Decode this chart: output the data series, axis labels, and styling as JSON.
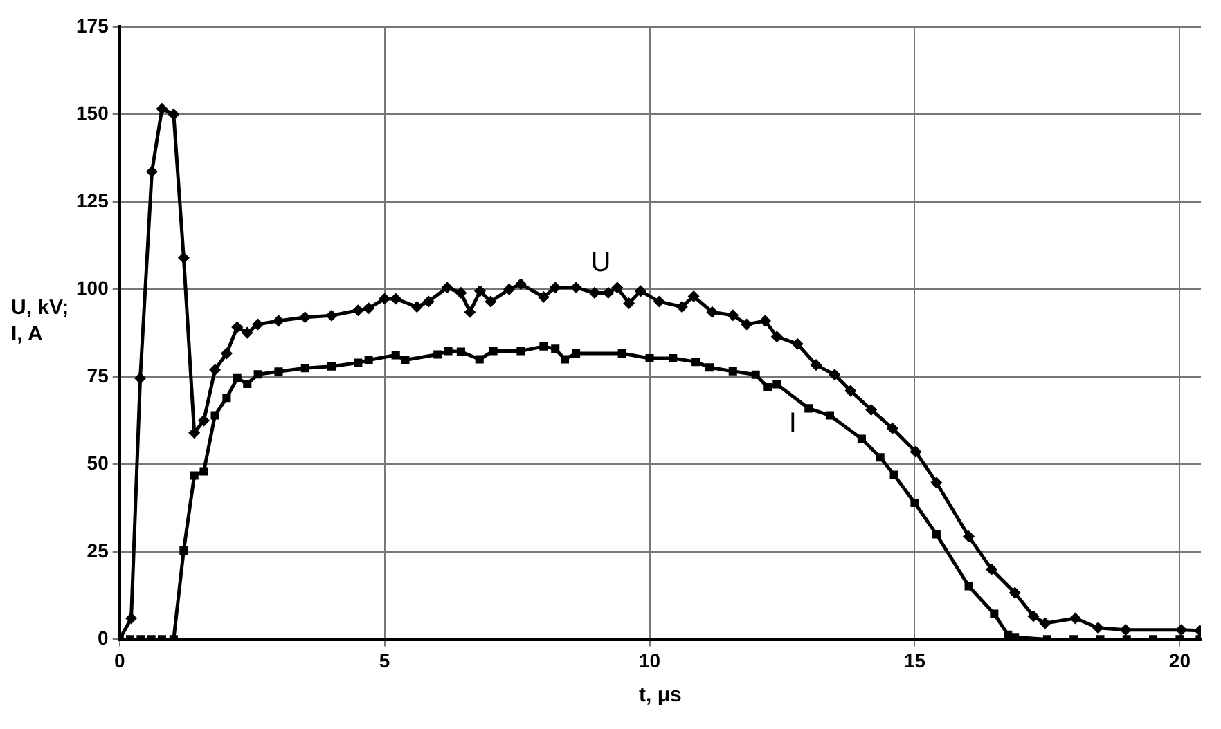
{
  "chart_data": {
    "type": "line",
    "xlabel": "t, μs",
    "ylabel": "U, kV; I, A",
    "xlim": [
      0,
      20.4
    ],
    "xticks": [
      0,
      5,
      10,
      15,
      20
    ],
    "ylim": [
      0,
      175
    ],
    "yticks": [
      0,
      25,
      50,
      75,
      100,
      125,
      150,
      175
    ],
    "grid": true,
    "legend": false,
    "line_style": "solid",
    "series": [
      {
        "name": "U",
        "color": "#000000",
        "marker": "diamond",
        "x": [
          0,
          0.22,
          0.39,
          0.61,
          0.8,
          1.02,
          1.21,
          1.41,
          1.59,
          1.8,
          2.02,
          2.22,
          2.41,
          2.61,
          3.0,
          3.5,
          4.0,
          4.5,
          4.7,
          5.0,
          5.21,
          5.61,
          5.83,
          6.18,
          6.44,
          6.61,
          6.8,
          7.0,
          7.35,
          7.57,
          8.0,
          8.22,
          8.61,
          8.96,
          9.22,
          9.39,
          9.61,
          9.83,
          10.18,
          10.61,
          10.83,
          11.18,
          11.57,
          11.83,
          12.18,
          12.4,
          12.79,
          13.14,
          13.49,
          13.79,
          14.18,
          14.58,
          15.02,
          15.41,
          16.02,
          16.45,
          16.89,
          17.24,
          17.46,
          18.03,
          18.46,
          18.98,
          20.03,
          20.38
        ],
        "values": [
          0,
          6,
          74.6,
          133.6,
          151.6,
          150,
          109,
          59,
          62.5,
          77,
          81.7,
          89.2,
          87.6,
          90,
          91,
          92,
          92.5,
          94,
          94.6,
          97.3,
          97.3,
          95,
          96.5,
          100.5,
          99,
          93.5,
          99.5,
          96.5,
          100,
          101.5,
          97.8,
          100.5,
          100.5,
          99,
          99,
          100.5,
          96,
          99.5,
          96.5,
          95,
          98,
          93.5,
          92.6,
          90,
          91,
          86.5,
          84.4,
          78.4,
          75.6,
          71,
          65.6,
          60.3,
          53.6,
          44.8,
          29.4,
          20,
          13.3,
          6.6,
          4.6,
          6,
          3.3,
          2.7,
          2.7,
          2.5
        ]
      },
      {
        "name": "I",
        "color": "#000000",
        "marker": "square",
        "x": [
          0,
          0.2,
          0.4,
          0.6,
          0.8,
          1.02,
          1.21,
          1.41,
          1.59,
          1.8,
          2.02,
          2.22,
          2.41,
          2.61,
          3.0,
          3.5,
          4.0,
          4.5,
          4.7,
          5.21,
          5.39,
          6.0,
          6.2,
          6.44,
          6.79,
          7.05,
          7.57,
          8.0,
          8.22,
          8.4,
          8.61,
          9.48,
          10.0,
          10.44,
          10.87,
          11.13,
          11.57,
          12.0,
          12.23,
          12.4,
          13.0,
          13.4,
          14.0,
          14.35,
          14.61,
          15.0,
          15.41,
          16.02,
          16.5,
          16.76,
          16.89,
          17.5,
          18.0,
          18.5,
          19.0,
          19.5,
          20.0,
          20.38
        ],
        "values": [
          0,
          0,
          0,
          0,
          0,
          0,
          25.4,
          46.8,
          48,
          64,
          69,
          74.6,
          73,
          75.7,
          76.5,
          77.5,
          78,
          79,
          79.8,
          81.2,
          79.8,
          81.4,
          82.4,
          82.2,
          80,
          82.4,
          82.4,
          83.7,
          83,
          80,
          81.7,
          81.7,
          80.3,
          80.3,
          79.3,
          77.7,
          76.6,
          75.6,
          72,
          72.9,
          66,
          64,
          57.3,
          52,
          47,
          39,
          30,
          15.2,
          7.3,
          1.3,
          0.6,
          0,
          0,
          0,
          0,
          0,
          0,
          0
        ]
      }
    ]
  }
}
